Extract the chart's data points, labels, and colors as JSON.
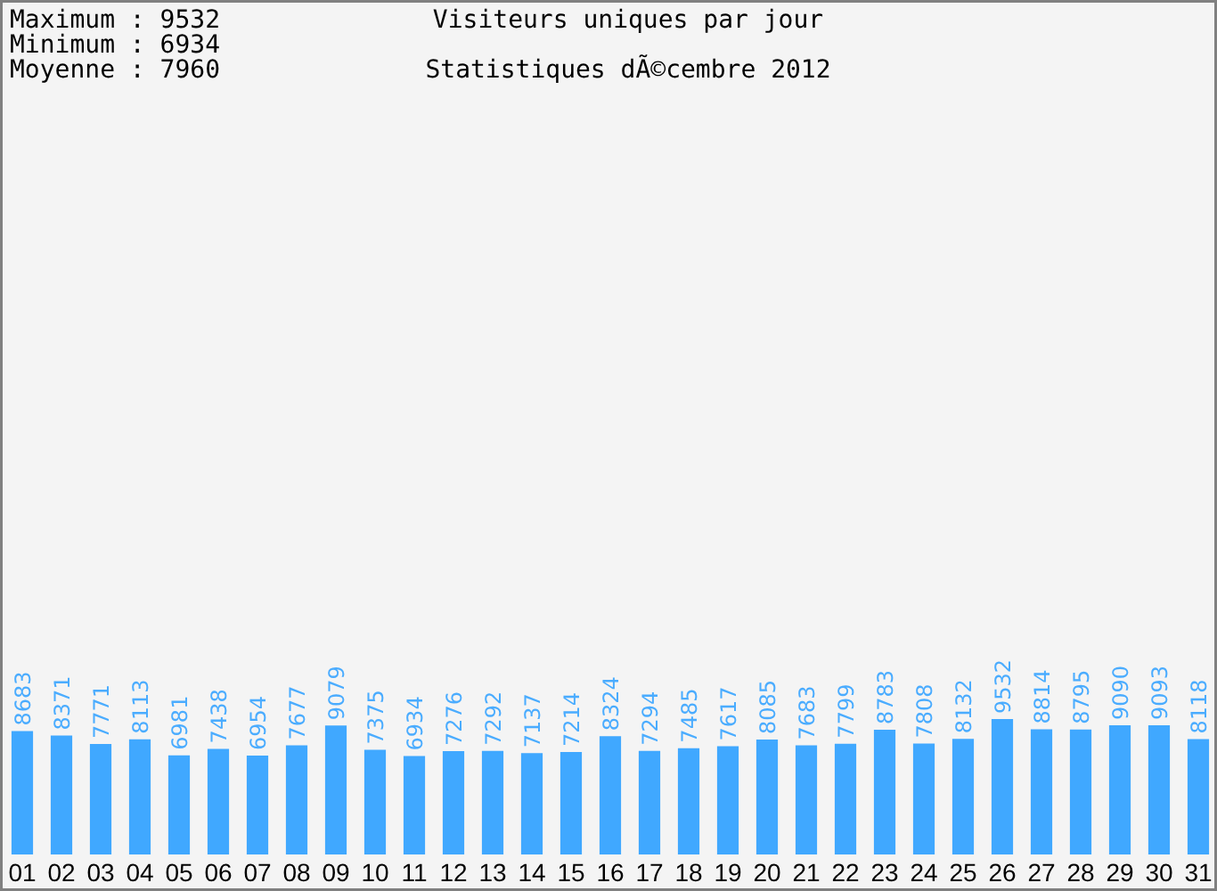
{
  "chart_data": {
    "type": "bar",
    "title": "Visiteurs uniques par jour",
    "subtitle": "Statistiques dÃ©cembre 2012",
    "annotations": [
      "Maximum : 9532",
      "Minimum : 6934",
      "Moyenne : 7960"
    ],
    "categories": [
      "01",
      "02",
      "03",
      "04",
      "05",
      "06",
      "07",
      "08",
      "09",
      "10",
      "11",
      "12",
      "13",
      "14",
      "15",
      "16",
      "17",
      "18",
      "19",
      "20",
      "21",
      "22",
      "23",
      "24",
      "25",
      "26",
      "27",
      "28",
      "29",
      "30",
      "31"
    ],
    "values": [
      8683,
      8371,
      7771,
      8113,
      6981,
      7438,
      6954,
      7677,
      9079,
      7375,
      6934,
      7276,
      7292,
      7137,
      7214,
      8324,
      7294,
      7485,
      7617,
      8085,
      7683,
      7799,
      8783,
      7808,
      8132,
      9532,
      8814,
      8795,
      9090,
      9093,
      8118
    ],
    "color": "#40a8ff",
    "data_labels": true
  }
}
